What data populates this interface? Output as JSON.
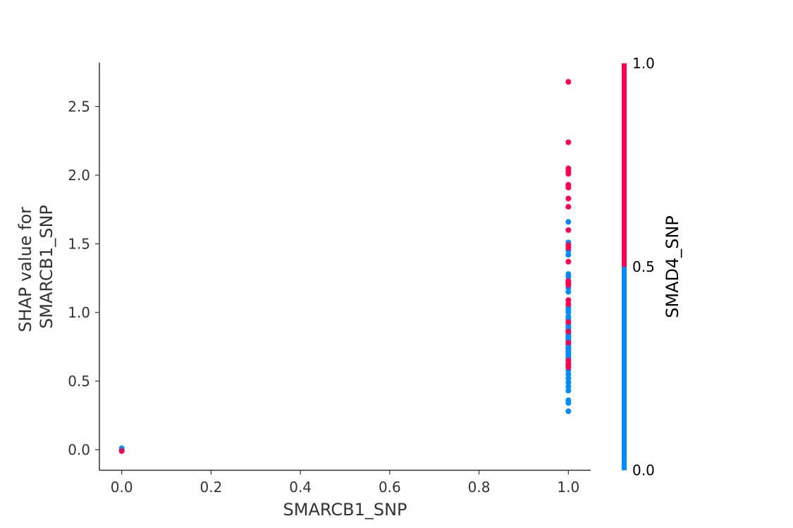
{
  "chart_data": {
    "type": "scatter",
    "title": "",
    "xlabel": "SMARCB1_SNP",
    "ylabel": "SHAP value for\nSMARCB1_SNP",
    "xlim": [
      -0.05,
      1.05
    ],
    "ylim": [
      -0.15,
      2.82
    ],
    "xticks": [
      "0.0",
      "0.2",
      "0.4",
      "0.6",
      "0.8",
      "1.0"
    ],
    "yticks": [
      "0.0",
      "0.5",
      "1.0",
      "1.5",
      "2.0",
      "2.5"
    ],
    "grid": false,
    "colorbar": {
      "feature": "SMAD4_SNP",
      "tick_labels": [
        "0.0",
        "0.5",
        "1.0"
      ],
      "low_color": "#008bfb",
      "high_color": "#ff0051"
    },
    "series": [
      {
        "color": "#ff0051",
        "x": [
          1,
          1,
          1,
          1,
          1,
          1,
          1,
          1,
          1,
          1,
          1,
          1,
          1,
          1,
          1,
          1,
          1,
          1,
          1,
          1,
          1,
          1,
          1,
          1,
          0
        ],
        "y": [
          2.68,
          2.24,
          2.05,
          2.03,
          2.01,
          1.93,
          1.91,
          1.83,
          1.77,
          1.6,
          1.49,
          1.47,
          1.37,
          1.23,
          1.21,
          1.2,
          1.09,
          1.06,
          0.93,
          0.86,
          0.78,
          0.65,
          0.62,
          0.6,
          -0.01
        ]
      },
      {
        "color": "#008bfb",
        "x": [
          1,
          1,
          1,
          1,
          1,
          1,
          1,
          1,
          1,
          1,
          1,
          1,
          1,
          1,
          1,
          1,
          1,
          1,
          1,
          1,
          1,
          1,
          1,
          1,
          1,
          1,
          1,
          1,
          1,
          1,
          1,
          1,
          1,
          1,
          1,
          1,
          1,
          1,
          1,
          1,
          1,
          1,
          1,
          1,
          1,
          1,
          1,
          1,
          1,
          1,
          1,
          1,
          0,
          0,
          0
        ],
        "y": [
          1.66,
          1.51,
          1.45,
          1.42,
          1.28,
          1.26,
          1.22,
          1.18,
          1.15,
          1.06,
          1.04,
          1.02,
          1.0,
          0.97,
          0.95,
          0.92,
          0.9,
          0.89,
          0.88,
          0.87,
          0.86,
          0.85,
          0.84,
          0.83,
          0.82,
          0.81,
          0.8,
          0.79,
          0.78,
          0.77,
          0.76,
          0.75,
          0.74,
          0.73,
          0.72,
          0.71,
          0.7,
          0.69,
          0.68,
          0.67,
          0.66,
          0.63,
          0.61,
          0.58,
          0.55,
          0.52,
          0.49,
          0.46,
          0.43,
          0.36,
          0.34,
          0.28,
          0.0,
          0.01,
          -0.005
        ]
      }
    ]
  }
}
